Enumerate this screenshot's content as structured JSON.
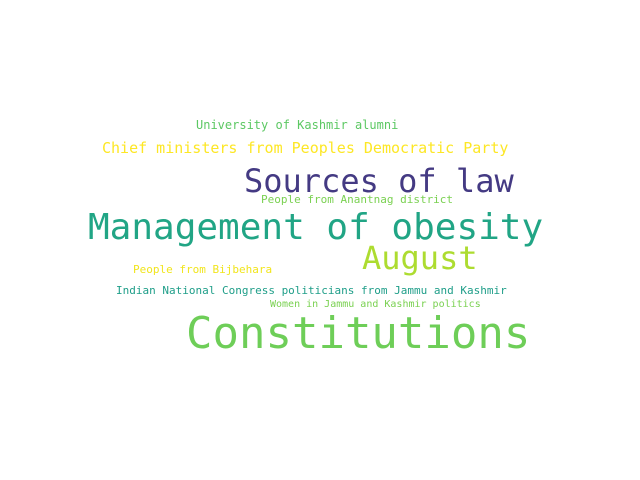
{
  "word_cloud": {
    "words": [
      {
        "text": "University of Kashmir alumni",
        "color": "#5cc863"
      },
      {
        "text": "Chief ministers from Peoples Democratic Party",
        "color": "#fde725"
      },
      {
        "text": "Sources of law",
        "color": "#443a83"
      },
      {
        "text": "People from Anantnag district",
        "color": "#7ad151"
      },
      {
        "text": "Management of obesity",
        "color": "#21a585"
      },
      {
        "text": "August",
        "color": "#addc30"
      },
      {
        "text": "People from Bijbehara",
        "color": "#f1e51d"
      },
      {
        "text": "Indian National Congress politicians from Jammu and Kashmir",
        "color": "#1f9e89"
      },
      {
        "text": "Women in Jammu and Kashmir politics",
        "color": "#7ad151"
      },
      {
        "text": "Constitutions",
        "color": "#6ece58"
      }
    ]
  }
}
